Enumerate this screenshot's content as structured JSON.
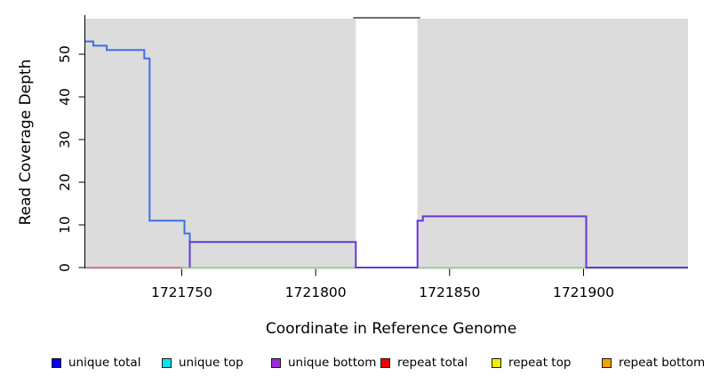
{
  "figure": {
    "background": "#ffffff",
    "plot_background": "#dcdcdc",
    "gap_border_color": "#6e6e6e",
    "axis_color": "#000000",
    "text_color": "#000000"
  },
  "chart_data": {
    "type": "line",
    "subtype": "step",
    "title": "",
    "xlabel": "Coordinate in Reference Genome",
    "ylabel": "Read Coverage Depth",
    "xlim": [
      1721714,
      1721939
    ],
    "ylim": [
      0,
      59
    ],
    "x_ticks": [
      1721750,
      1721800,
      1721850,
      1721900
    ],
    "y_ticks": [
      0,
      10,
      20,
      30,
      40,
      50
    ],
    "grid": false,
    "legend_position": "bottom",
    "shaded_regions": [
      {
        "x0": 1721714,
        "x1": 1721815,
        "color": "#dcdcdc"
      },
      {
        "x0": 1721838,
        "x1": 1721939,
        "color": "#dcdcdc"
      }
    ],
    "gap_region": {
      "x0": 1721815,
      "x1": 1721838,
      "top_border_color": "#6e6e6e"
    },
    "series": [
      {
        "name": "repeat total",
        "color": "#e25770",
        "width": 1.6,
        "points": [
          [
            1721714,
            0
          ],
          [
            1721750,
            0
          ]
        ]
      },
      {
        "name": "unique total",
        "color": "#3c6fe8",
        "width": 2,
        "points": [
          [
            1721714,
            53
          ],
          [
            1721717,
            53
          ],
          [
            1721717,
            52
          ],
          [
            1721722,
            52
          ],
          [
            1721722,
            51
          ],
          [
            1721736,
            51
          ],
          [
            1721736,
            49
          ],
          [
            1721738,
            49
          ],
          [
            1721738,
            11
          ],
          [
            1721751,
            11
          ],
          [
            1721751,
            8
          ],
          [
            1721753,
            8
          ],
          [
            1721753,
            0
          ]
        ]
      },
      {
        "name": "unique top / repeat top (overlapping at zero)",
        "color": "#8fce8f",
        "width": 1.6,
        "points": [
          [
            1721750,
            0
          ],
          [
            1721939,
            0
          ]
        ]
      },
      {
        "name": "unique bottom",
        "color": "#6438d8",
        "width": 2,
        "points": [
          [
            1721753,
            0
          ],
          [
            1721753,
            6
          ],
          [
            1721815,
            6
          ],
          [
            1721815,
            0
          ],
          [
            1721838,
            0
          ],
          [
            1721838,
            11
          ],
          [
            1721840,
            11
          ],
          [
            1721840,
            12
          ],
          [
            1721901,
            12
          ],
          [
            1721901,
            0
          ],
          [
            1721939,
            0
          ]
        ]
      }
    ],
    "legend": [
      {
        "label": "unique total",
        "color": "#0202ee"
      },
      {
        "label": "unique top",
        "color": "#00e6ee"
      },
      {
        "label": "unique bottom",
        "color": "#9b2bd4"
      },
      {
        "label": "repeat total",
        "color": "#ee0202"
      },
      {
        "label": "repeat top",
        "color": "#eeee02"
      },
      {
        "label": "repeat bottom",
        "color": "#efa002"
      }
    ]
  }
}
